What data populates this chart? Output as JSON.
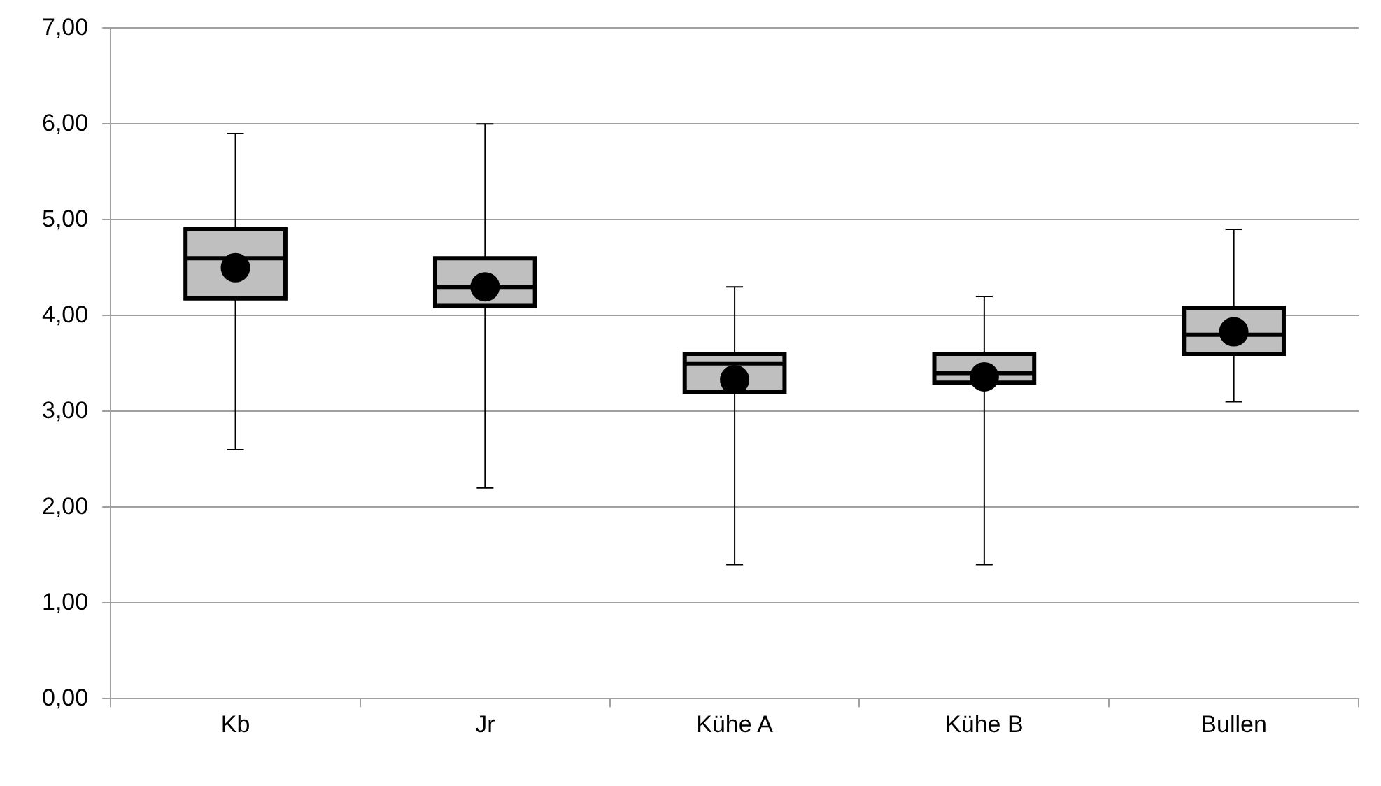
{
  "chart_data": {
    "type": "box",
    "categories": [
      "Kb",
      "Jr",
      "Kühe A",
      "Kühe B",
      "Bullen"
    ],
    "color": "#bfbfbf",
    "marker": "circle",
    "grid": "y",
    "legend": false,
    "boxes": [
      {
        "low": 2.6,
        "q1": 4.18,
        "median": 4.6,
        "q3": 4.9,
        "high": 5.9,
        "mean": 4.5
      },
      {
        "low": 2.2,
        "q1": 4.1,
        "median": 4.3,
        "q3": 4.6,
        "high": 6.0,
        "mean": 4.3
      },
      {
        "low": 1.4,
        "q1": 3.2,
        "median": 3.5,
        "q3": 3.6,
        "high": 4.3,
        "mean": 3.33
      },
      {
        "low": 1.4,
        "q1": 3.3,
        "median": 3.4,
        "q3": 3.6,
        "high": 4.2,
        "mean": 3.36
      },
      {
        "low": 3.1,
        "q1": 3.6,
        "median": 3.8,
        "q3": 4.08,
        "high": 4.9,
        "mean": 3.83
      }
    ],
    "ylim": [
      0,
      7
    ],
    "yticks": [
      {
        "value": 0,
        "label": "0,00"
      },
      {
        "value": 1,
        "label": "1,00"
      },
      {
        "value": 2,
        "label": "2,00"
      },
      {
        "value": 3,
        "label": "3,00"
      },
      {
        "value": 4,
        "label": "4,00"
      },
      {
        "value": 5,
        "label": "5,00"
      },
      {
        "value": 6,
        "label": "6,00"
      },
      {
        "value": 7,
        "label": "7,00"
      }
    ]
  }
}
